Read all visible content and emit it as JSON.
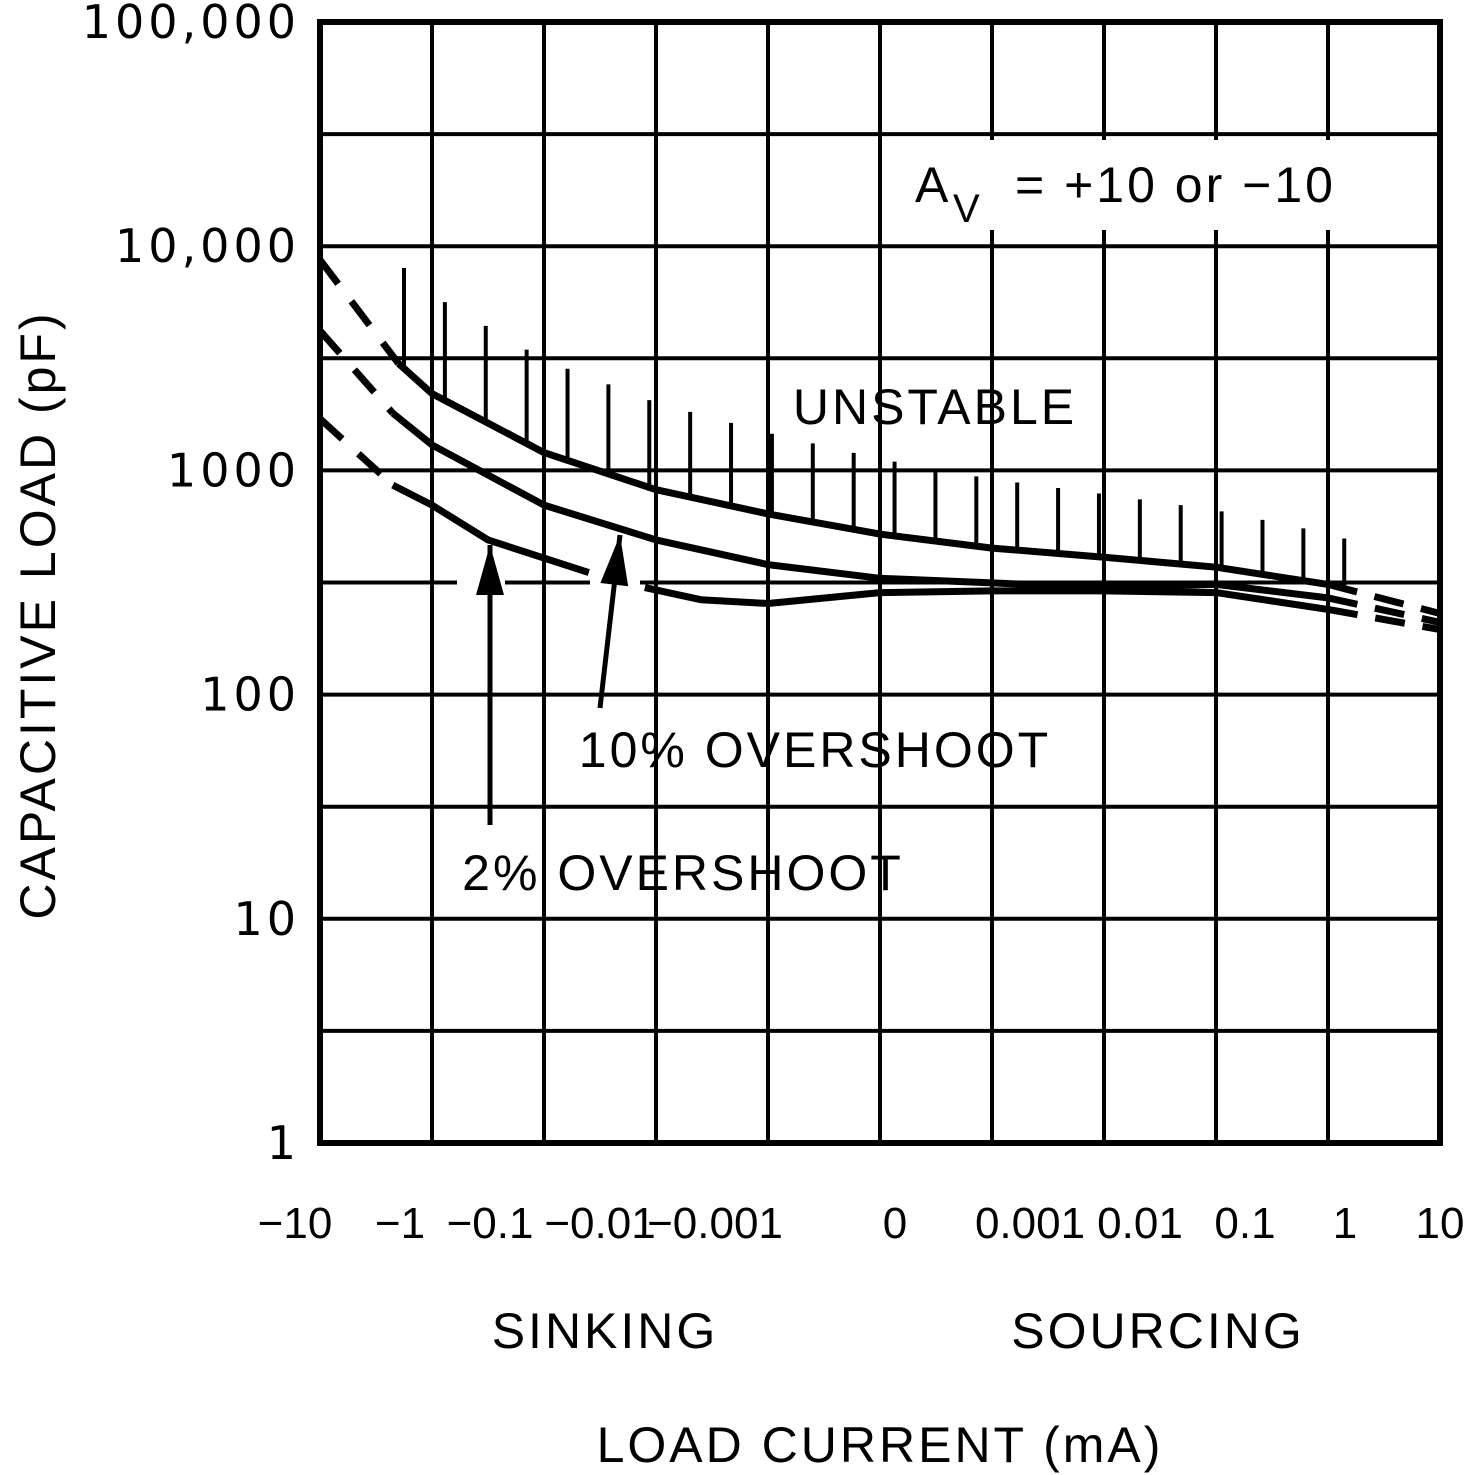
{
  "chart_data": {
    "type": "line",
    "title": "",
    "xlabel": "LOAD CURRENT (mA)",
    "ylabel": "CAPACITIVE LOAD (pF)",
    "x_scale": "symmetric-log (sinking negative, sourcing positive)",
    "y_scale": "log",
    "x_tick_labels": [
      "-10",
      "-1",
      "-0.1",
      "-0.01",
      "-0.001",
      "0",
      "0.001",
      "0.01",
      "0.1",
      "1",
      "10"
    ],
    "y_tick_labels": [
      "100,000",
      "10,000",
      "1000",
      "100",
      "10",
      "1"
    ],
    "y_tick_values": [
      100000,
      10000,
      1000,
      100,
      10,
      1
    ],
    "ylim": [
      1,
      100000
    ],
    "grid": true,
    "region_labels": {
      "sinking": "SINKING",
      "sourcing": "SOURCING",
      "unstable": "UNSTABLE"
    },
    "condition_annotation": {
      "symbol": "A",
      "subscript": "V",
      "text": "= +10 or −10"
    },
    "annotations": [
      "10% OVERSHOOT",
      "2% OVERSHOOT"
    ],
    "x_position_note": "x values are tick-label positions (0 = -10 mA ... 5 = 0 ... 10 = +10 mA)",
    "series": [
      {
        "name": "Unstable boundary",
        "style": "solid with dashed extrapolated ends, hatched (unstable) above",
        "x": [
          0.0,
          0.7,
          1.0,
          2.0,
          3.0,
          4.0,
          5.0,
          6.0,
          7.0,
          8.0,
          9.0,
          10.0
        ],
        "values": [
          8700,
          3000,
          2200,
          1200,
          820,
          640,
          520,
          450,
          410,
          370,
          310,
          230
        ]
      },
      {
        "name": "10% OVERSHOOT",
        "style": "solid with dashed extrapolated ends",
        "x": [
          0.0,
          0.65,
          1.0,
          2.0,
          3.0,
          4.0,
          5.0,
          6.0,
          7.0,
          8.0,
          9.0,
          10.0
        ],
        "values": [
          4200,
          1800,
          1300,
          700,
          490,
          380,
          330,
          315,
          300,
          310,
          270,
          210
        ]
      },
      {
        "name": "2% OVERSHOOT",
        "style": "solid with dashed extrapolated ends",
        "x": [
          0.0,
          0.65,
          1.0,
          1.5,
          2.4,
          2.9,
          3.4,
          4.0,
          5.0,
          6.0,
          7.0,
          8.0,
          9.0,
          10.0
        ],
        "values": [
          1700,
          860,
          700,
          490,
          350,
          300,
          265,
          255,
          285,
          290,
          290,
          285,
          240,
          195
        ]
      }
    ],
    "reference_line": {
      "value": 316,
      "style": "dashed segment at left, part of grid"
    }
  }
}
